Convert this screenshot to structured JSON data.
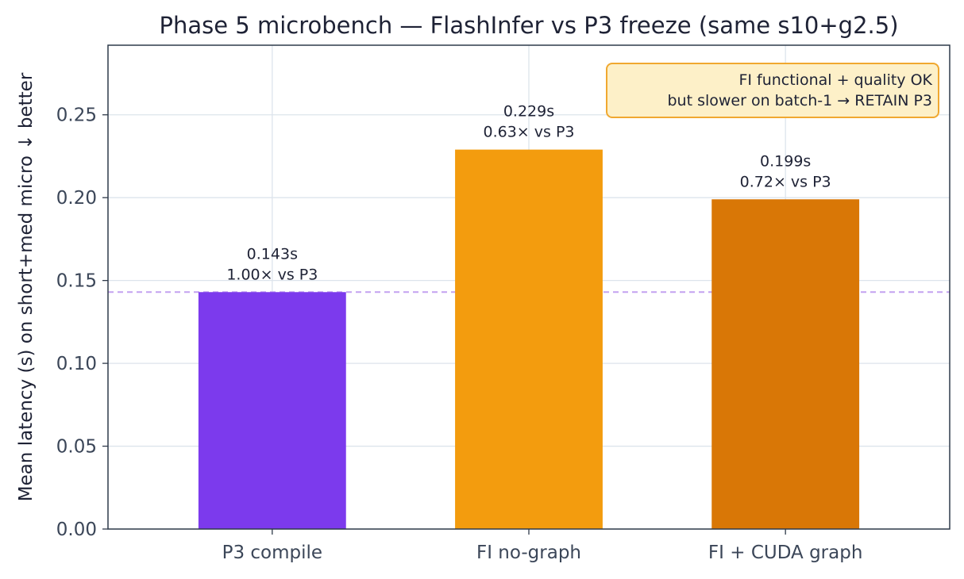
{
  "chart_data": {
    "type": "bar",
    "title": "Phase 5 microbench — FlashInfer vs P3 freeze (same s10+g2.5)",
    "ylabel": "Mean latency (s) on short+med micro  ↓ better",
    "xlabel": "",
    "categories": [
      "P3 compile",
      "FI no-graph",
      "FI + CUDA graph"
    ],
    "values": [
      0.143,
      0.229,
      0.199
    ],
    "data_labels": [
      [
        "0.143s",
        "1.00× vs P3"
      ],
      [
        "0.229s",
        "0.63× vs P3"
      ],
      [
        "0.199s",
        "0.72× vs P3"
      ]
    ],
    "colors": [
      "#7c3aed",
      "#f39c0e",
      "#d97706"
    ],
    "ylim": [
      0,
      0.292
    ],
    "yticks": [
      "0.00",
      "0.05",
      "0.10",
      "0.15",
      "0.20",
      "0.25"
    ],
    "ytick_values": [
      0,
      0.05,
      0.1,
      0.15,
      0.2,
      0.25
    ],
    "grid": true,
    "reference_line": {
      "value": 0.143,
      "color": "#c4a1f0",
      "style": "dashed"
    },
    "annotation": {
      "lines": [
        "FI functional + quality OK",
        "but slower on batch-1 → RETAIN P3"
      ],
      "position": "top-right",
      "background": "#fdf0c8",
      "border": "#f0a830"
    }
  }
}
